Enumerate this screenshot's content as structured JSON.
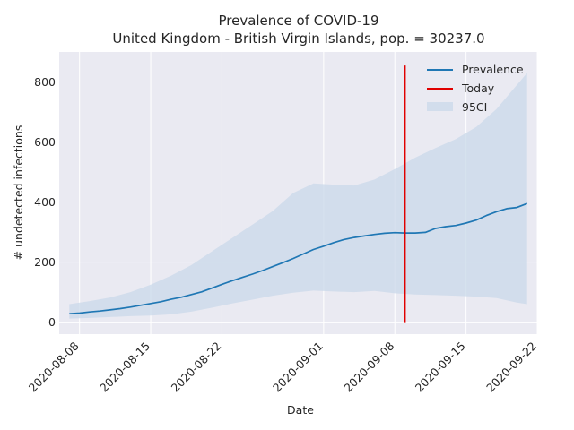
{
  "chart_data": {
    "type": "line",
    "title": "Prevalence of COVID-19",
    "subtitle": "United Kingdom - British Virgin Islands, pop. = 30237.0",
    "xlabel": "Date",
    "ylabel": "# undetected infections",
    "x_ticks": [
      "2020-08-08",
      "2020-08-15",
      "2020-08-22",
      "2020-09-01",
      "2020-09-08",
      "2020-09-15",
      "2020-09-22"
    ],
    "y_ticks": [
      0,
      200,
      400,
      600,
      800
    ],
    "ylim": [
      -40,
      900
    ],
    "xlim": [
      "2020-08-06",
      "2020-09-22"
    ],
    "grid": true,
    "legend_position": "top-right",
    "colors": {
      "prevalence": "#1f77b4",
      "today": "#e00000",
      "ci_fill": "#c9d8ea",
      "background": "#eaeaf2",
      "grid": "#ffffff"
    },
    "series": [
      {
        "name": "Prevalence",
        "kind": "line",
        "x": [
          "2020-08-07",
          "2020-08-08",
          "2020-08-09",
          "2020-08-10",
          "2020-08-11",
          "2020-08-12",
          "2020-08-13",
          "2020-08-14",
          "2020-08-15",
          "2020-08-16",
          "2020-08-17",
          "2020-08-18",
          "2020-08-19",
          "2020-08-20",
          "2020-08-21",
          "2020-08-22",
          "2020-08-23",
          "2020-08-24",
          "2020-08-25",
          "2020-08-26",
          "2020-08-27",
          "2020-08-28",
          "2020-08-29",
          "2020-08-30",
          "2020-08-31",
          "2020-09-01",
          "2020-09-02",
          "2020-09-03",
          "2020-09-04",
          "2020-09-05",
          "2020-09-06",
          "2020-09-07",
          "2020-09-08",
          "2020-09-09",
          "2020-09-10",
          "2020-09-11",
          "2020-09-12",
          "2020-09-13",
          "2020-09-14",
          "2020-09-15",
          "2020-09-16",
          "2020-09-17",
          "2020-09-18",
          "2020-09-19",
          "2020-09-20",
          "2020-09-21"
        ],
        "values": [
          28,
          30,
          34,
          37,
          41,
          45,
          50,
          56,
          62,
          68,
          76,
          83,
          92,
          101,
          113,
          126,
          138,
          149,
          160,
          172,
          185,
          198,
          212,
          227,
          242,
          253,
          265,
          275,
          282,
          287,
          292,
          296,
          298,
          297,
          297,
          299,
          312,
          318,
          322,
          330,
          340,
          355,
          368,
          378,
          382,
          395
        ]
      },
      {
        "name": "Today",
        "kind": "vline",
        "x": "2020-09-09",
        "y_range": [
          0,
          855
        ]
      },
      {
        "name": "95CI",
        "kind": "band",
        "x": [
          "2020-08-07",
          "2020-08-09",
          "2020-08-11",
          "2020-08-13",
          "2020-08-15",
          "2020-08-17",
          "2020-08-19",
          "2020-08-21",
          "2020-08-23",
          "2020-08-25",
          "2020-08-27",
          "2020-08-29",
          "2020-08-31",
          "2020-09-02",
          "2020-09-04",
          "2020-09-06",
          "2020-09-08",
          "2020-09-10",
          "2020-09-12",
          "2020-09-14",
          "2020-09-16",
          "2020-09-18",
          "2020-09-20",
          "2020-09-21"
        ],
        "lower": [
          12,
          14,
          17,
          20,
          22,
          26,
          35,
          48,
          62,
          75,
          88,
          98,
          105,
          102,
          100,
          104,
          96,
          92,
          90,
          88,
          85,
          80,
          65,
          60
        ],
        "upper": [
          60,
          70,
          82,
          100,
          125,
          155,
          190,
          235,
          280,
          325,
          370,
          430,
          462,
          458,
          455,
          475,
          510,
          548,
          580,
          610,
          650,
          710,
          790,
          830
        ]
      }
    ]
  }
}
